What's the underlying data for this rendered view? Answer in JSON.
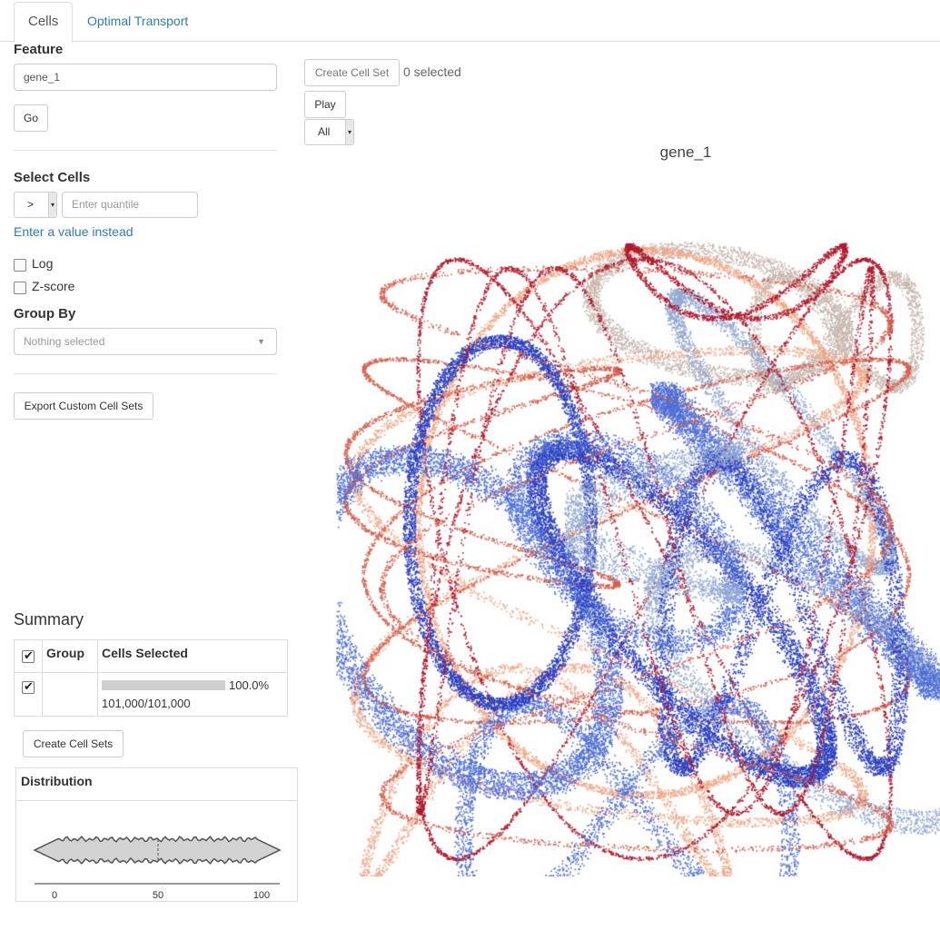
{
  "tabs": [
    {
      "label": "Cells"
    },
    {
      "label": "Optimal Transport"
    }
  ],
  "sidebar": {
    "feature_label": "Feature",
    "feature_value": "gene_1",
    "go_label": "Go",
    "select_cells_label": "Select Cells",
    "operator_value": ">",
    "quantile_placeholder": "Enter quantile",
    "enter_value_link": "Enter a value instead",
    "log_label": "Log",
    "zscore_label": "Z-score",
    "group_by_label": "Group By",
    "group_by_placeholder": "Nothing selected",
    "export_label": "Export Custom Cell Sets"
  },
  "summary": {
    "title": "Summary",
    "col_group": "Group",
    "col_cells_selected": "Cells Selected",
    "row_percent": "100.0%",
    "row_fraction": 1.0,
    "row_counts": "101,000/101,000",
    "create_sets_label": "Create Cell Sets"
  },
  "distribution": {
    "title": "Distribution",
    "ticks": [
      "0",
      "50",
      "100"
    ],
    "median": 50
  },
  "toolbar": {
    "create_cell_set_label": "Create Cell Set",
    "selected_text": "0 selected",
    "play_label": "Play",
    "filter_value": "All"
  },
  "plot": {
    "title": "gene_1",
    "colors": [
      "#b2182b",
      "#d6604d",
      "#f4a582",
      "#c8b8b0",
      "#92a8d1",
      "#4f6fd8",
      "#2a3fc0"
    ]
  }
}
